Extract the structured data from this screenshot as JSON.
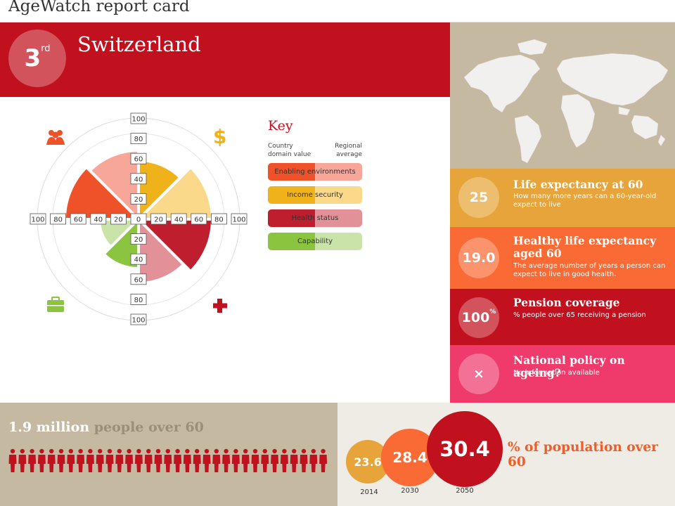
{
  "header": {
    "title": "AgeWatch report card"
  },
  "country": {
    "rank_number": "3",
    "rank_suffix": "rd",
    "name": "Switzerland"
  },
  "chart_data": {
    "type": "polar-bar",
    "radial_axis_ticks": [
      "100",
      "80",
      "60",
      "40",
      "20",
      "0",
      "20",
      "40",
      "60",
      "80",
      "100"
    ],
    "rmax": 100,
    "domains": [
      {
        "name": "Enabling environments",
        "icon": "people-icon",
        "country": 75,
        "regional": 70,
        "color_country": "#ef5229",
        "color_regional": "#f7a79a"
      },
      {
        "name": "Income security",
        "icon": "dollar-icon",
        "country": 60,
        "regional": 75,
        "color_country": "#f0b21a",
        "color_regional": "#fbd98b"
      },
      {
        "name": "Health status",
        "icon": "health-cross-icon",
        "country": 75,
        "regional": 65,
        "color_country": "#be1e2d",
        "color_regional": "#e29198"
      },
      {
        "name": "Capability",
        "icon": "briefcase-icon",
        "country": 50,
        "regional": 40,
        "color_country": "#8bc540",
        "color_regional": "#c9e3a8"
      }
    ]
  },
  "key": {
    "title": "Key",
    "col_country": [
      "Country",
      "domain value"
    ],
    "col_regional": [
      "Regional",
      "average"
    ]
  },
  "stats": [
    {
      "value": "25",
      "title": "Life expectancy at 60",
      "desc": "How many more years can a 60-year-old expect to live",
      "color": "#e7a43a"
    },
    {
      "value": "19.0",
      "title": "Healthy life expectancy aged 60",
      "desc": "The average number of years a person can expect to live in good health.",
      "color": "#fa6a35"
    },
    {
      "value": "100",
      "value_suffix": "%",
      "title": "Pension coverage",
      "desc": "% people over 65 receiving a pension",
      "color": "#c1111e"
    },
    {
      "value": "×",
      "title": "National policy on ageing?",
      "desc": "No information available",
      "color": "#ef3b6b"
    }
  ],
  "population": {
    "count_text": "1.9 million",
    "count_label": " people over 60",
    "person_icon_count": 33,
    "icon_color": "#c1111e",
    "share_label": "% of population over 60",
    "bubbles": [
      {
        "value": "23.6",
        "year": "2014",
        "color": "#e7a43a"
      },
      {
        "value": "28.4",
        "year": "2030",
        "color": "#fa6a35"
      },
      {
        "value": "30.4",
        "year": "2050",
        "color": "#c1111e"
      }
    ]
  }
}
